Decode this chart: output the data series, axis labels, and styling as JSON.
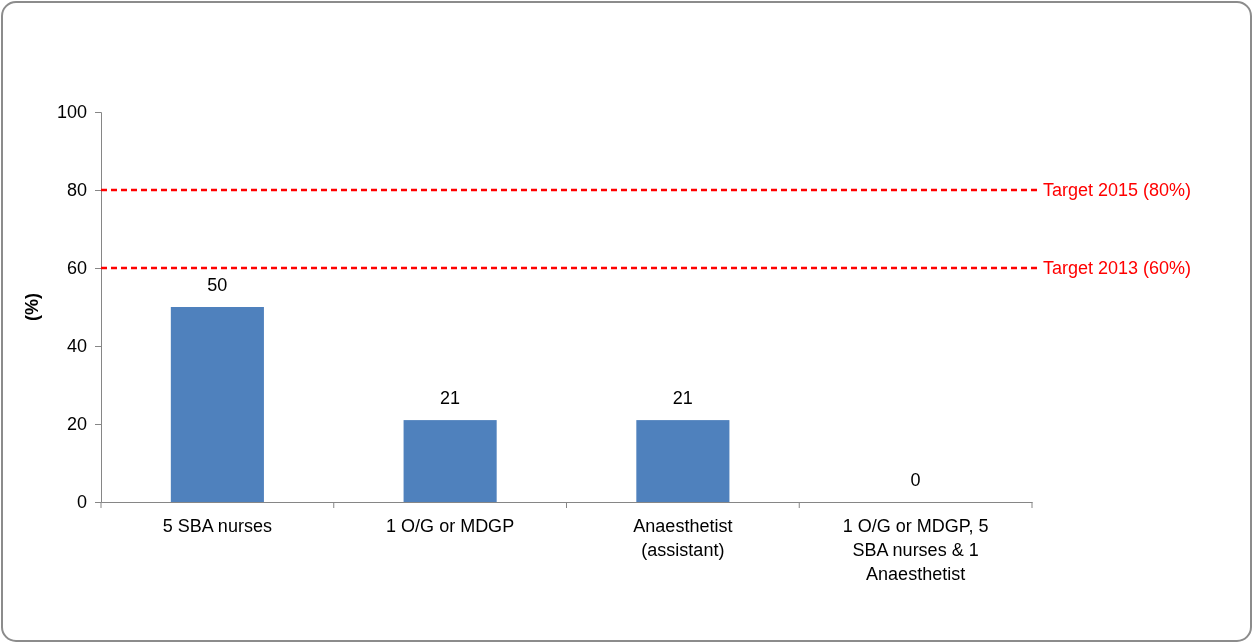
{
  "chart_data": {
    "type": "bar",
    "ylabel": "(%)",
    "categories": [
      "5 SBA nurses",
      "1 O/G or MDGP",
      "Anaesthetist (assistant)",
      "1 O/G or MDGP, 5 SBA nurses & 1 Anaesthetist"
    ],
    "values": [
      50,
      21,
      21,
      0
    ],
    "color": "#4f81bd",
    "data_labels": true,
    "ylim": [
      0,
      100
    ],
    "yticks": [
      0,
      20,
      40,
      60,
      80,
      100
    ],
    "grid": false,
    "ref_lines": [
      {
        "axis": "y",
        "value": 80,
        "label": "Target 2015 (80%)",
        "color": "#ff0000",
        "line_style": "dashed"
      },
      {
        "axis": "y",
        "value": 60,
        "label": "Target 2013 (60%)",
        "color": "#ff0000",
        "line_style": "dashed"
      }
    ]
  }
}
